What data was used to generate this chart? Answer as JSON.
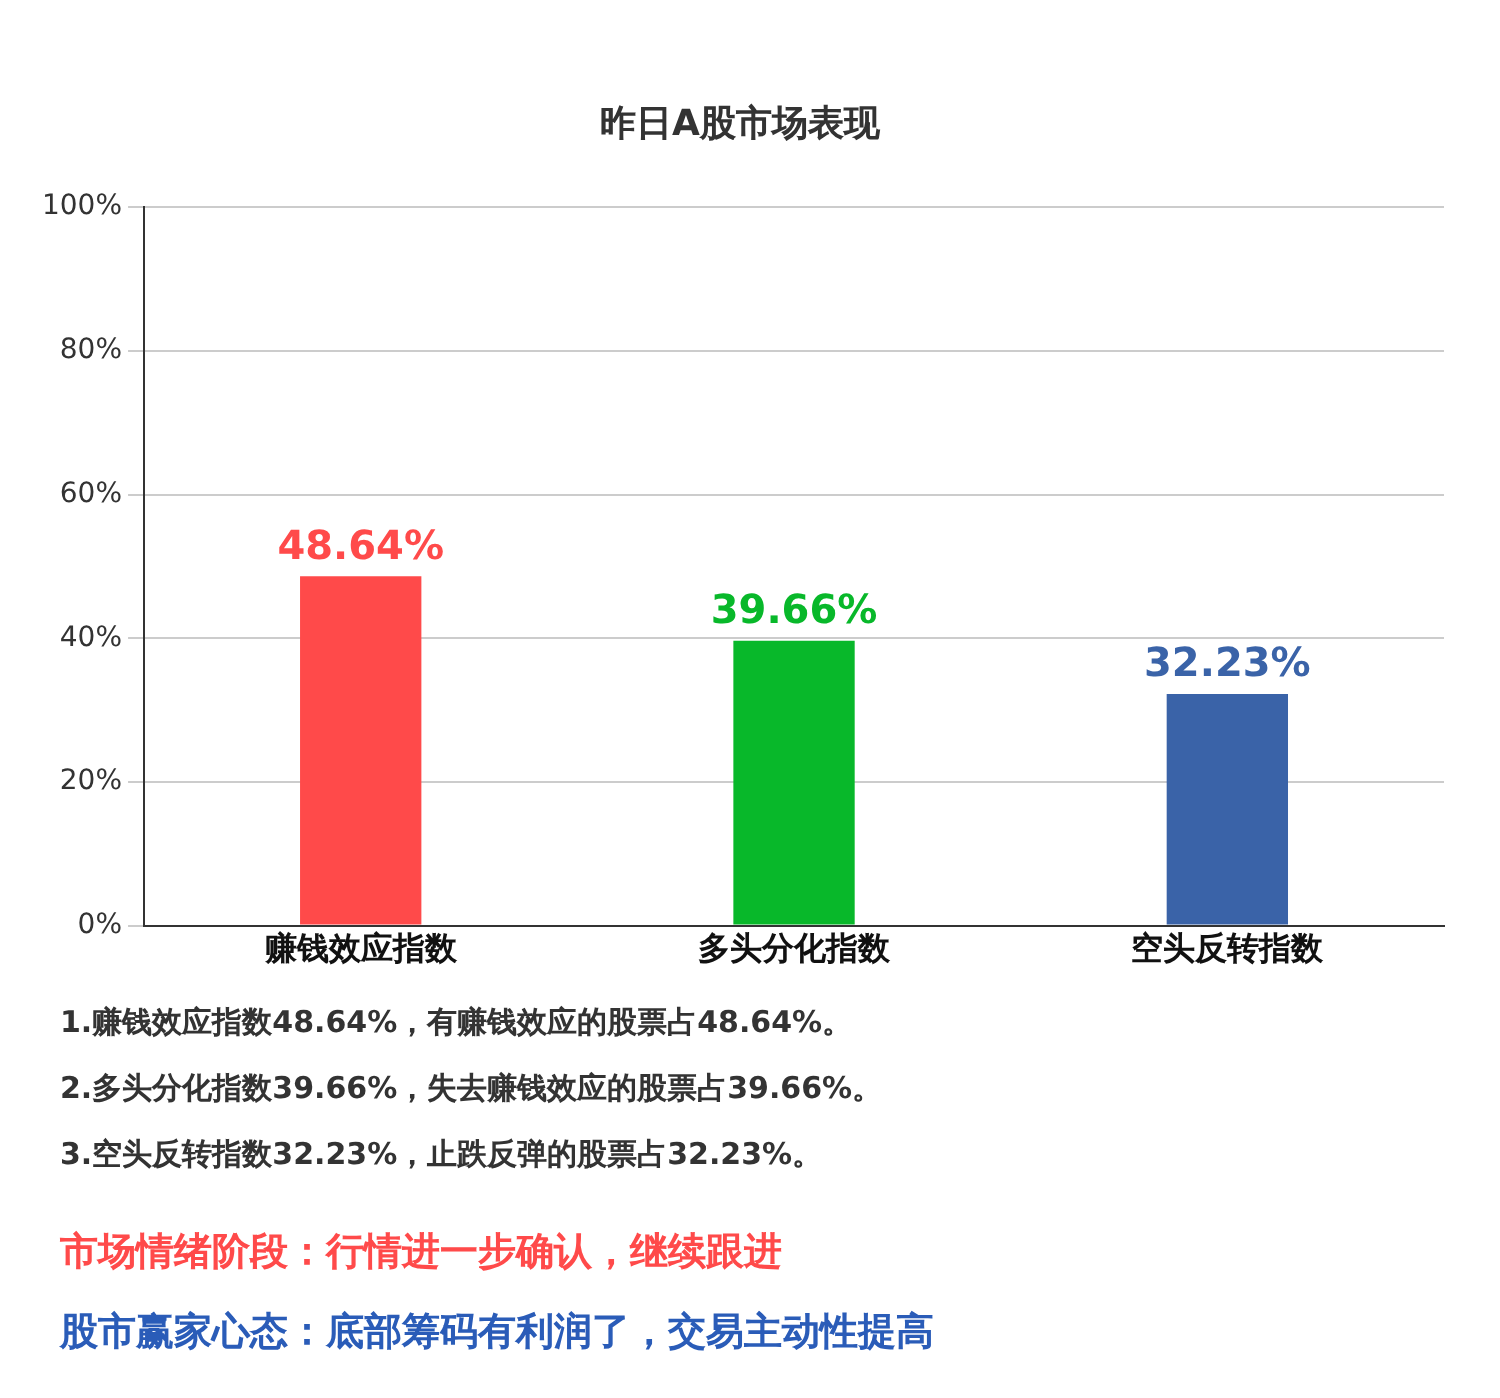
{
  "chart_data": {
    "type": "bar",
    "title": "昨日A股市场表现",
    "categories": [
      "赚钱效应指数",
      "多头分化指数",
      "空头反转指数"
    ],
    "values": [
      48.64,
      39.66,
      32.23
    ],
    "colors": [
      "#ff4a4a",
      "#08b82a",
      "#3a63a8"
    ],
    "value_labels": [
      "48.64%",
      "39.66%",
      "32.23%"
    ],
    "ylim": [
      0,
      100
    ],
    "yticks": [
      {
        "value": 0,
        "label": "0%"
      },
      {
        "value": 20,
        "label": "20%"
      },
      {
        "value": 40,
        "label": "40%"
      },
      {
        "value": 60,
        "label": "60%"
      },
      {
        "value": 80,
        "label": "80%"
      },
      {
        "value": 100,
        "label": "100%"
      }
    ],
    "grid": "y",
    "legend": false,
    "annotations": [
      "1.赚钱效应指数48.64%，有赚钱效应的股票占48.64%。",
      "2.多头分化指数39.66%，失去赚钱效应的股票占39.66%。",
      "3.空头反转指数32.23%，止跌反弹的股票占32.23%。",
      "市场情绪阶段：行情进一步确认，继续跟进",
      "股市赢家心态：底部筹码有利润了，交易主动性提高"
    ]
  }
}
